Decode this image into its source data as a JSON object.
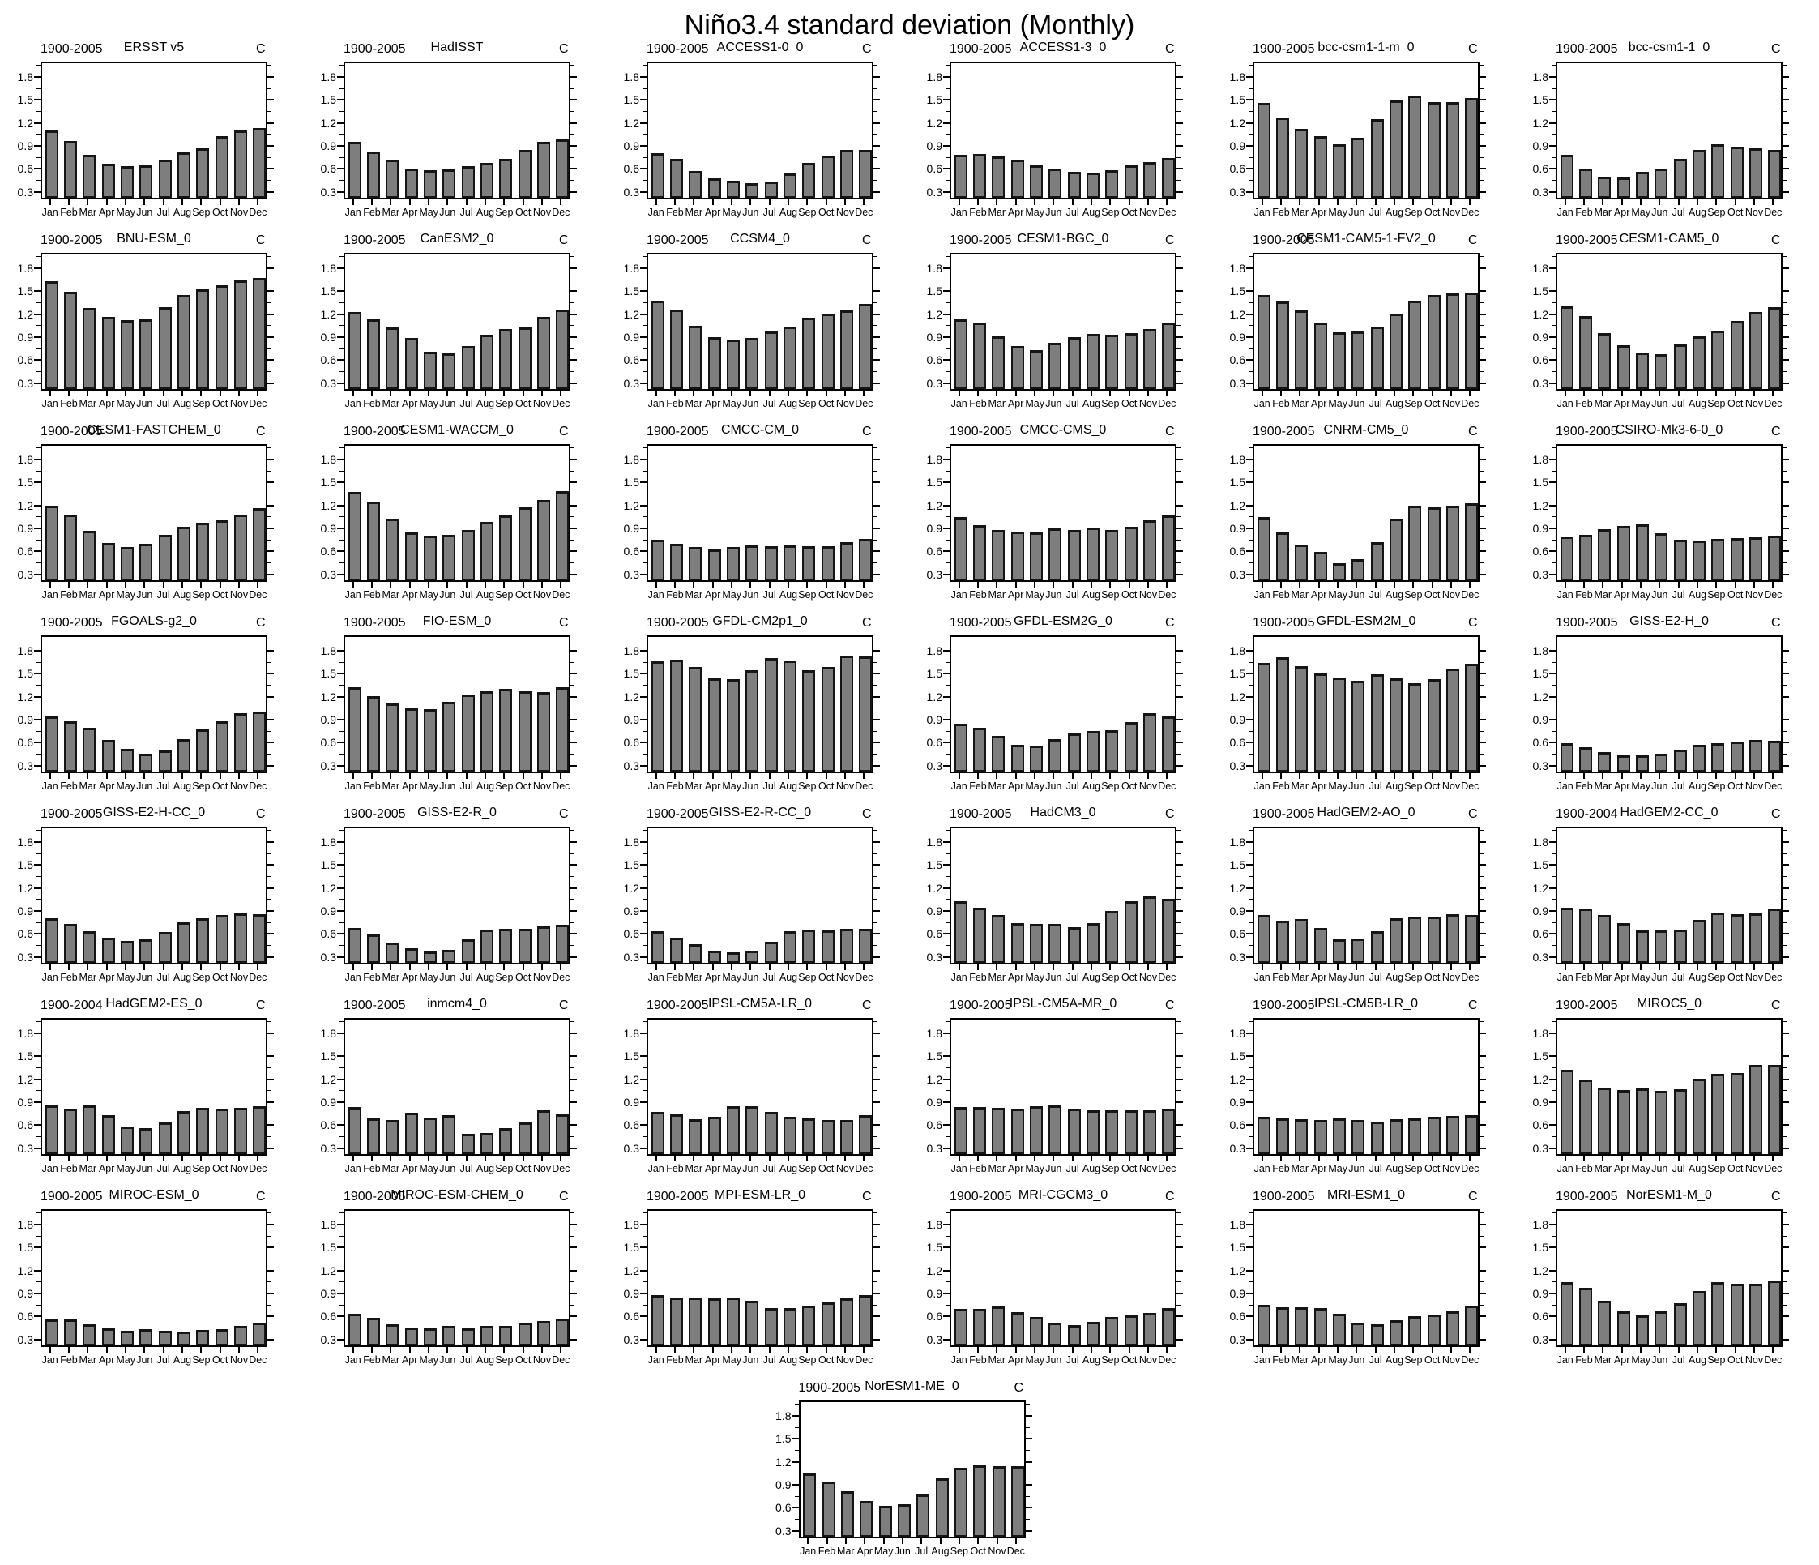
{
  "page_title": "Niño3.4 standard deviation (Monthly)",
  "chart_data": {
    "type": "bar",
    "title": "Niño3.4 standard deviation (Monthly)",
    "categories": [
      "Jan",
      "Feb",
      "Mar",
      "Apr",
      "May",
      "Jun",
      "Jul",
      "Aug",
      "Sep",
      "Oct",
      "Nov",
      "Dec"
    ],
    "unit_label": "C",
    "ylim": [
      0.2,
      2.0
    ],
    "yticks": [
      0.3,
      0.6,
      0.9,
      1.2,
      1.5,
      1.8
    ],
    "grid": false,
    "legend": "none",
    "bar_color": "#7e7e7e",
    "bar_edge_color": "#151515",
    "series": [
      {
        "name": "ERSST v5",
        "period": "1900-2005",
        "values": [
          1.08,
          0.94,
          0.76,
          0.65,
          0.61,
          0.62,
          0.7,
          0.79,
          0.85,
          1.01,
          1.08,
          1.11
        ]
      },
      {
        "name": "HadISST",
        "period": "1900-2005",
        "values": [
          0.93,
          0.8,
          0.7,
          0.58,
          0.56,
          0.57,
          0.61,
          0.66,
          0.71,
          0.82,
          0.93,
          0.96
        ]
      },
      {
        "name": "ACCESS1-0_0",
        "period": "1900-2005",
        "values": [
          0.78,
          0.71,
          0.55,
          0.45,
          0.42,
          0.39,
          0.41,
          0.52,
          0.66,
          0.75,
          0.82,
          0.83
        ]
      },
      {
        "name": "ACCESS1-3_0",
        "period": "1900-2005",
        "values": [
          0.76,
          0.77,
          0.74,
          0.7,
          0.62,
          0.58,
          0.54,
          0.53,
          0.56,
          0.62,
          0.67,
          0.72
        ]
      },
      {
        "name": "bcc-csm1-1-m_0",
        "period": "1900-2005",
        "values": [
          1.44,
          1.25,
          1.1,
          1.0,
          0.9,
          0.98,
          1.23,
          1.47,
          1.53,
          1.45,
          1.45,
          1.5
        ]
      },
      {
        "name": "bcc-csm1-1_0",
        "period": "1900-2005",
        "values": [
          0.76,
          0.58,
          0.48,
          0.46,
          0.54,
          0.58,
          0.71,
          0.83,
          0.9,
          0.87,
          0.85,
          0.83
        ]
      },
      {
        "name": "BNU-ESM_0",
        "period": "1900-2005",
        "values": [
          1.61,
          1.47,
          1.26,
          1.14,
          1.1,
          1.11,
          1.27,
          1.43,
          1.5,
          1.56,
          1.62,
          1.65
        ]
      },
      {
        "name": "CanESM2_0",
        "period": "1900-2005",
        "values": [
          1.21,
          1.11,
          1.01,
          0.87,
          0.69,
          0.67,
          0.76,
          0.91,
          0.98,
          1.01,
          1.14,
          1.24
        ]
      },
      {
        "name": "CCSM4_0",
        "period": "1900-2005",
        "values": [
          1.35,
          1.24,
          1.03,
          0.88,
          0.85,
          0.87,
          0.95,
          1.02,
          1.13,
          1.18,
          1.23,
          1.31
        ]
      },
      {
        "name": "CESM1-BGC_0",
        "period": "1900-2005",
        "values": [
          1.11,
          1.07,
          0.89,
          0.76,
          0.71,
          0.8,
          0.88,
          0.92,
          0.91,
          0.93,
          0.98,
          1.07
        ]
      },
      {
        "name": "CESM1-CAM5-1-FV2_0",
        "period": "1900-2005",
        "values": [
          1.43,
          1.34,
          1.23,
          1.07,
          0.94,
          0.95,
          1.02,
          1.18,
          1.35,
          1.43,
          1.45,
          1.46
        ]
      },
      {
        "name": "CESM1-CAM5_0",
        "period": "1900-2005",
        "values": [
          1.28,
          1.15,
          0.93,
          0.77,
          0.68,
          0.66,
          0.78,
          0.89,
          0.96,
          1.09,
          1.21,
          1.27
        ]
      },
      {
        "name": "CESM1-FASTCHEM_0",
        "period": "1900-2005",
        "values": [
          1.17,
          1.06,
          0.85,
          0.69,
          0.63,
          0.68,
          0.79,
          0.9,
          0.95,
          0.98,
          1.06,
          1.14
        ]
      },
      {
        "name": "CESM1-WACCM_0",
        "period": "1900-2005",
        "values": [
          1.35,
          1.23,
          1.01,
          0.83,
          0.78,
          0.79,
          0.86,
          0.96,
          1.05,
          1.15,
          1.25,
          1.37
        ]
      },
      {
        "name": "CMCC-CM_0",
        "period": "1900-2005",
        "values": [
          0.73,
          0.68,
          0.63,
          0.6,
          0.63,
          0.66,
          0.65,
          0.66,
          0.65,
          0.64,
          0.7,
          0.74
        ]
      },
      {
        "name": "CMCC-CMS_0",
        "period": "1900-2005",
        "values": [
          1.03,
          0.92,
          0.86,
          0.84,
          0.82,
          0.88,
          0.86,
          0.89,
          0.86,
          0.9,
          0.98,
          1.05
        ]
      },
      {
        "name": "CNRM-CM5_0",
        "period": "1900-2005",
        "values": [
          1.03,
          0.82,
          0.67,
          0.57,
          0.42,
          0.48,
          0.7,
          1.01,
          1.17,
          1.15,
          1.17,
          1.21
        ]
      },
      {
        "name": "CSIRO-Mk3-6-0_0",
        "period": "1900-2005",
        "values": [
          0.77,
          0.79,
          0.87,
          0.91,
          0.93,
          0.81,
          0.73,
          0.72,
          0.74,
          0.75,
          0.76,
          0.78
        ]
      },
      {
        "name": "FGOALS-g2_0",
        "period": "1900-2005",
        "values": [
          0.92,
          0.86,
          0.77,
          0.61,
          0.5,
          0.43,
          0.48,
          0.62,
          0.75,
          0.86,
          0.96,
          0.98
        ]
      },
      {
        "name": "FIO-ESM_0",
        "period": "1900-2005",
        "values": [
          1.3,
          1.19,
          1.09,
          1.03,
          1.02,
          1.11,
          1.21,
          1.25,
          1.28,
          1.25,
          1.24,
          1.3
        ]
      },
      {
        "name": "GFDL-CM2p1_0",
        "period": "1900-2005",
        "values": [
          1.64,
          1.66,
          1.57,
          1.42,
          1.41,
          1.52,
          1.68,
          1.65,
          1.52,
          1.57,
          1.71,
          1.7
        ]
      },
      {
        "name": "GFDL-ESM2G_0",
        "period": "1900-2005",
        "values": [
          0.83,
          0.77,
          0.67,
          0.55,
          0.54,
          0.62,
          0.7,
          0.73,
          0.74,
          0.85,
          0.96,
          0.92
        ]
      },
      {
        "name": "GFDL-ESM2M_0",
        "period": "1900-2005",
        "values": [
          1.62,
          1.69,
          1.58,
          1.48,
          1.43,
          1.39,
          1.47,
          1.42,
          1.35,
          1.41,
          1.54,
          1.61
        ]
      },
      {
        "name": "GISS-E2-H_0",
        "period": "1900-2005",
        "values": [
          0.57,
          0.52,
          0.45,
          0.41,
          0.41,
          0.43,
          0.49,
          0.55,
          0.57,
          0.59,
          0.61,
          0.6
        ]
      },
      {
        "name": "GISS-E2-H-CC_0",
        "period": "1900-2005",
        "values": [
          0.78,
          0.71,
          0.61,
          0.53,
          0.49,
          0.51,
          0.6,
          0.73,
          0.78,
          0.82,
          0.85,
          0.84
        ]
      },
      {
        "name": "GISS-E2-R_0",
        "period": "1900-2005",
        "values": [
          0.66,
          0.57,
          0.47,
          0.39,
          0.35,
          0.37,
          0.51,
          0.63,
          0.65,
          0.64,
          0.68,
          0.7
        ]
      },
      {
        "name": "GISS-E2-R-CC_0",
        "period": "1900-2005",
        "values": [
          0.61,
          0.53,
          0.44,
          0.36,
          0.34,
          0.36,
          0.48,
          0.61,
          0.63,
          0.62,
          0.64,
          0.65
        ]
      },
      {
        "name": "HadCM3_0",
        "period": "1900-2005",
        "values": [
          1.01,
          0.92,
          0.82,
          0.72,
          0.71,
          0.71,
          0.67,
          0.72,
          0.88,
          1.01,
          1.07,
          1.04
        ]
      },
      {
        "name": "HadGEM2-AO_0",
        "period": "1900-2005",
        "values": [
          0.82,
          0.75,
          0.77,
          0.66,
          0.51,
          0.52,
          0.61,
          0.78,
          0.8,
          0.8,
          0.84,
          0.83
        ]
      },
      {
        "name": "HadGEM2-CC_0",
        "period": "1900-2004",
        "values": [
          0.92,
          0.91,
          0.82,
          0.72,
          0.62,
          0.62,
          0.63,
          0.76,
          0.86,
          0.84,
          0.85,
          0.91
        ]
      },
      {
        "name": "HadGEM2-ES_0",
        "period": "1900-2004",
        "values": [
          0.84,
          0.79,
          0.84,
          0.71,
          0.56,
          0.54,
          0.61,
          0.76,
          0.8,
          0.79,
          0.8,
          0.83
        ]
      },
      {
        "name": "inmcm4_0",
        "period": "1900-2005",
        "values": [
          0.81,
          0.67,
          0.65,
          0.74,
          0.68,
          0.71,
          0.46,
          0.48,
          0.54,
          0.61,
          0.77,
          0.72
        ]
      },
      {
        "name": "IPSL-CM5A-LR_0",
        "period": "1900-2005",
        "values": [
          0.75,
          0.72,
          0.66,
          0.69,
          0.83,
          0.83,
          0.75,
          0.69,
          0.67,
          0.65,
          0.65,
          0.71
        ]
      },
      {
        "name": "IPSL-CM5A-MR_0",
        "period": "1900-2005",
        "values": [
          0.81,
          0.81,
          0.8,
          0.79,
          0.83,
          0.84,
          0.79,
          0.77,
          0.77,
          0.77,
          0.77,
          0.79
        ]
      },
      {
        "name": "IPSL-CM5B-LR_0",
        "period": "1900-2005",
        "values": [
          0.69,
          0.67,
          0.66,
          0.64,
          0.67,
          0.65,
          0.62,
          0.66,
          0.67,
          0.69,
          0.7,
          0.71
        ]
      },
      {
        "name": "MIROC5_0",
        "period": "1900-2005",
        "values": [
          1.3,
          1.17,
          1.07,
          1.04,
          1.06,
          1.03,
          1.05,
          1.19,
          1.25,
          1.26,
          1.36,
          1.37
        ]
      },
      {
        "name": "MIROC-ESM_0",
        "period": "1900-2005",
        "values": [
          0.54,
          0.54,
          0.48,
          0.42,
          0.39,
          0.41,
          0.39,
          0.38,
          0.4,
          0.41,
          0.45,
          0.5
        ]
      },
      {
        "name": "MIROC-ESM-CHEM_0",
        "period": "1900-2005",
        "values": [
          0.61,
          0.56,
          0.48,
          0.43,
          0.42,
          0.45,
          0.42,
          0.45,
          0.45,
          0.5,
          0.52,
          0.55
        ]
      },
      {
        "name": "MPI-ESM-LR_0",
        "period": "1900-2005",
        "values": [
          0.86,
          0.82,
          0.82,
          0.81,
          0.82,
          0.78,
          0.69,
          0.69,
          0.72,
          0.76,
          0.81,
          0.86
        ]
      },
      {
        "name": "MRI-CGCM3_0",
        "period": "1900-2005",
        "values": [
          0.68,
          0.68,
          0.71,
          0.63,
          0.57,
          0.5,
          0.46,
          0.51,
          0.57,
          0.59,
          0.62,
          0.69
        ]
      },
      {
        "name": "MRI-ESM1_0",
        "period": "1900-2005",
        "values": [
          0.73,
          0.7,
          0.7,
          0.69,
          0.61,
          0.5,
          0.48,
          0.53,
          0.58,
          0.6,
          0.64,
          0.72
        ]
      },
      {
        "name": "NorESM1-M_0",
        "period": "1900-2005",
        "values": [
          1.03,
          0.95,
          0.78,
          0.64,
          0.59,
          0.64,
          0.75,
          0.91,
          1.03,
          1.01,
          1.01,
          1.05
        ]
      },
      {
        "name": "NorESM1-ME_0",
        "period": "1900-2005",
        "values": [
          1.03,
          0.92,
          0.79,
          0.67,
          0.6,
          0.62,
          0.75,
          0.96,
          1.1,
          1.13,
          1.12,
          1.12
        ]
      }
    ]
  }
}
